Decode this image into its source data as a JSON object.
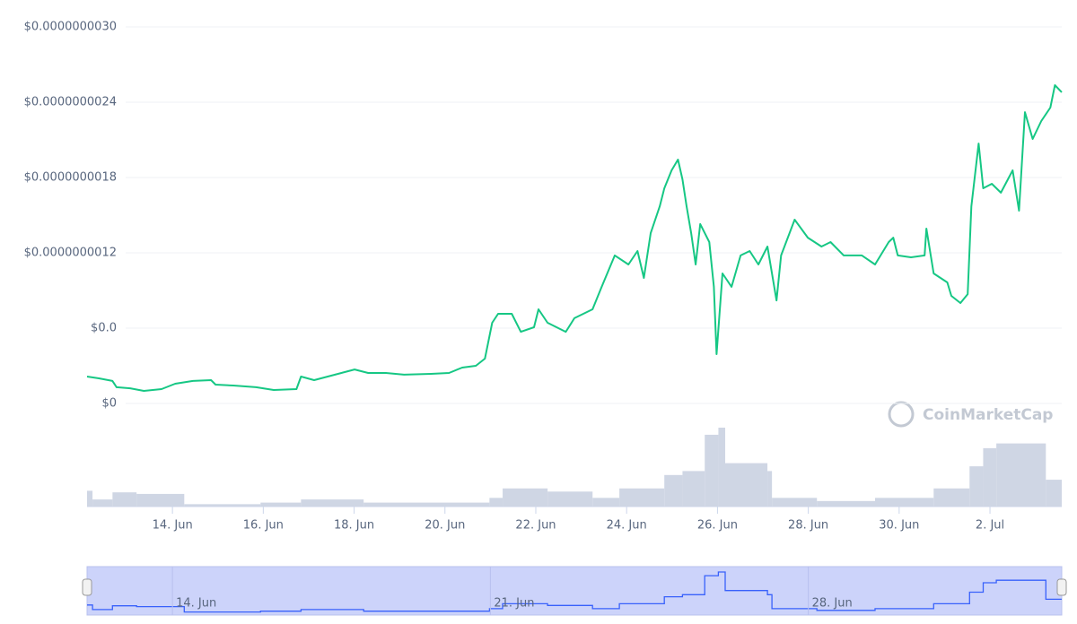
{
  "chart_data": {
    "type": "line",
    "x": [
      12.12,
      12.38,
      12.68,
      12.77,
      13.07,
      13.37,
      13.76,
      14.06,
      14.45,
      14.85,
      14.95,
      15.34,
      15.84,
      16.23,
      16.73,
      16.83,
      17.12,
      17.72,
      18.01,
      18.31,
      18.7,
      19.1,
      19.69,
      20.09,
      20.38,
      20.68,
      20.88,
      21.04,
      21.17,
      21.47,
      21.67,
      21.96,
      22.06,
      22.26,
      22.66,
      22.85,
      23.25,
      23.45,
      23.74,
      24.04,
      24.24,
      24.38,
      24.53,
      24.73,
      24.83,
      24.99,
      25.13,
      25.23,
      25.32,
      25.42,
      25.52,
      25.62,
      25.82,
      25.92,
      25.98,
      26.11,
      26.31,
      26.51,
      26.71,
      26.9,
      27.1,
      27.3,
      27.4,
      27.7,
      27.99,
      28.29,
      28.49,
      28.78,
      29.18,
      29.47,
      29.77,
      29.87,
      29.97,
      30.26,
      30.56,
      30.6,
      30.76,
      31.06,
      31.15,
      31.35,
      31.51,
      31.59,
      31.75,
      31.85,
      32.04,
      32.24,
      32.5,
      32.64,
      32.77,
      32.94,
      33.13,
      33.33,
      33.43,
      33.58
    ],
    "series": [
      {
        "color": "#16c784",
        "values": [
          2.14e-10,
          2e-10,
          1.79e-10,
          1.29e-10,
          1.21e-10,
          1e-10,
          1.14e-10,
          1.57e-10,
          1.79e-10,
          1.86e-10,
          1.5e-10,
          1.43e-10,
          1.29e-10,
          1.07e-10,
          1.14e-10,
          2.14e-10,
          1.86e-10,
          2.43e-10,
          2.71e-10,
          2.43e-10,
          2.43e-10,
          2.29e-10,
          2.36e-10,
          2.43e-10,
          2.86e-10,
          3e-10,
          3.57e-10,
          6.43e-10,
          7.14e-10,
          7.14e-10,
          5.71e-10,
          6.07e-10,
          7.5e-10,
          6.43e-10,
          5.71e-10,
          6.79e-10,
          7.5e-10,
          9.29e-10,
          1.179e-09,
          1.107e-09,
          1.214e-09,
          1e-09,
          1.357e-09,
          1.571e-09,
          1.714e-09,
          1.857e-09,
          1.943e-09,
          1.786e-09,
          1.571e-09,
          1.357e-09,
          1.107e-09,
          1.429e-09,
          1.286e-09,
          9.29e-10,
          3.93e-10,
          1.036e-09,
          9.29e-10,
          1.179e-09,
          1.214e-09,
          1.107e-09,
          1.25e-09,
          8.21e-10,
          1.179e-09,
          1.464e-09,
          1.321e-09,
          1.25e-09,
          1.286e-09,
          1.179e-09,
          1.179e-09,
          1.107e-09,
          1.286e-09,
          1.321e-09,
          1.179e-09,
          1.164e-09,
          1.179e-09,
          1.393e-09,
          1.036e-09,
          9.64e-10,
          8.57e-10,
          8e-10,
          8.71e-10,
          1.571e-09,
          2.071e-09,
          1.714e-09,
          1.75e-09,
          1.679e-09,
          1.857e-09,
          1.536e-09,
          2.321e-09,
          2.107e-09,
          2.25e-09,
          2.357e-09,
          2.536e-09,
          2.479e-09
        ]
      }
    ],
    "xlim": [
      12.12,
      33.58
    ],
    "xticks": [
      {
        "value": 14,
        "label": "14. Jun"
      },
      {
        "value": 16,
        "label": "16. Jun"
      },
      {
        "value": 18,
        "label": "18. Jun"
      },
      {
        "value": 20,
        "label": "20. Jun"
      },
      {
        "value": 22,
        "label": "22. Jun"
      },
      {
        "value": 24,
        "label": "24. Jun"
      },
      {
        "value": 26,
        "label": "26. Jun"
      },
      {
        "value": 28,
        "label": "28. Jun"
      },
      {
        "value": 30,
        "label": "30. Jun"
      },
      {
        "value": 32,
        "label": "2. Jul"
      }
    ],
    "ylim": [
      0,
      3e-09
    ],
    "yticks": [
      {
        "value": 0,
        "label": "$0"
      },
      {
        "value": 6e-10,
        "label": "$0.0"
      },
      {
        "value": 1.2e-09,
        "label": "$0.0000000012"
      },
      {
        "value": 1.8e-09,
        "label": "$0.0000000018"
      },
      {
        "value": 2.4e-09,
        "label": "$0.0000000024"
      },
      {
        "value": 3e-09,
        "label": "$0.0000000030"
      }
    ],
    "grid": true,
    "volume": {
      "type": "bar",
      "color": "#cfd6e4",
      "x": [
        12.12,
        12.24,
        12.68,
        13.21,
        14.26,
        15.94,
        16.83,
        18.21,
        20.98,
        21.27,
        22.26,
        23.25,
        23.84,
        24.83,
        25.23,
        25.72,
        26.02,
        26.17,
        27.1,
        27.2,
        28.19,
        29.47,
        30.76,
        31.55,
        31.85,
        32.14,
        33.23
      ],
      "values": [
        20,
        9,
        18,
        16,
        3,
        5,
        9,
        5,
        11,
        23,
        19,
        11,
        23,
        40,
        45,
        91,
        100,
        55,
        45,
        11,
        7,
        11,
        23,
        51,
        74,
        80,
        34
      ],
      "ylim": [
        0,
        100
      ]
    },
    "navigator": {
      "color": "#3861fb",
      "xticks": [
        {
          "value": 14,
          "label": "14. Jun"
        },
        {
          "value": 21,
          "label": "21. Jun"
        },
        {
          "value": 28,
          "label": "28. Jun"
        }
      ]
    },
    "watermark": "CoinMarketCap"
  }
}
